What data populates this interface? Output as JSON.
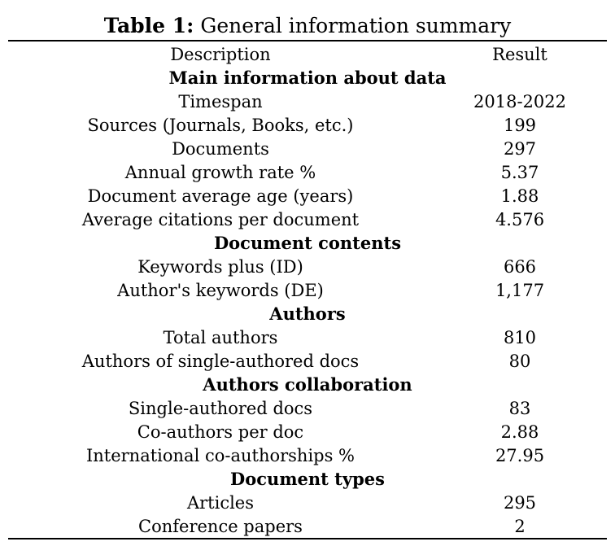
{
  "caption": {
    "label": "Table 1:",
    "text": "General information summary"
  },
  "header": {
    "description": "Description",
    "result": "Result"
  },
  "sections": [
    {
      "title": "Main information about data",
      "rows": [
        {
          "description": "Timespan",
          "result": "2018-2022"
        },
        {
          "description": "Sources (Journals, Books, etc.)",
          "result": "199"
        },
        {
          "description": "Documents",
          "result": "297"
        },
        {
          "description": "Annual growth rate %",
          "result": "5.37"
        },
        {
          "description": "Document average age (years)",
          "result": "1.88"
        },
        {
          "description": "Average citations per document",
          "result": "4.576"
        }
      ]
    },
    {
      "title": "Document contents",
      "rows": [
        {
          "description": "Keywords plus (ID)",
          "result": "666"
        },
        {
          "description": "Author's keywords (DE)",
          "result": "1,177"
        }
      ]
    },
    {
      "title": "Authors",
      "rows": [
        {
          "description": "Total authors",
          "result": "810"
        },
        {
          "description": "Authors of single-authored docs",
          "result": "80"
        }
      ]
    },
    {
      "title": "Authors collaboration",
      "rows": [
        {
          "description": "Single-authored docs",
          "result": "83"
        },
        {
          "description": "Co-authors per doc",
          "result": "2.88"
        },
        {
          "description": "International co-authorships %",
          "result": "27.95"
        }
      ]
    },
    {
      "title": "Document types",
      "rows": [
        {
          "description": "Articles",
          "result": "295"
        },
        {
          "description": "Conference papers",
          "result": "2"
        }
      ]
    }
  ]
}
